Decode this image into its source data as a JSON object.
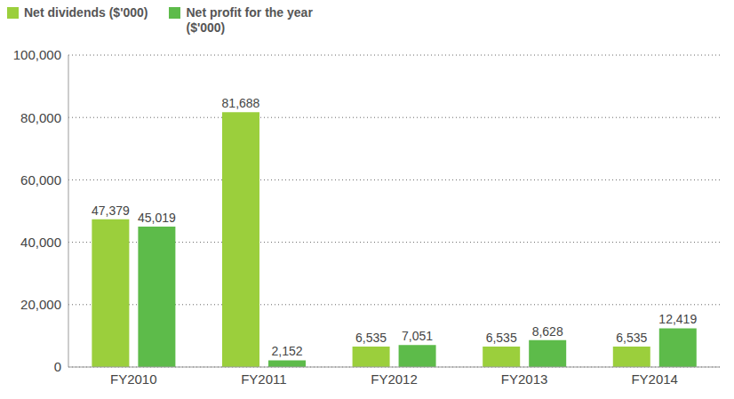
{
  "chart_data": {
    "type": "bar",
    "categories": [
      "FY2010",
      "FY2011",
      "FY2012",
      "FY2013",
      "FY2014"
    ],
    "series": [
      {
        "name": "Net dividends ($'000)",
        "color": "#9bcf3c",
        "values": [
          47379,
          81688,
          6535,
          6535,
          6535
        ],
        "value_labels": [
          "47,379",
          "81,688",
          "6,535",
          "6,535",
          "6,535"
        ]
      },
      {
        "name": "Net profit for the year ($'000)",
        "color": "#5dbb4a",
        "values": [
          45019,
          2152,
          7051,
          8628,
          12419
        ],
        "value_labels": [
          "45,019",
          "2,152",
          "7,051",
          "8,628",
          "12,419"
        ]
      }
    ],
    "ylim": [
      0,
      100000
    ],
    "yticks": [
      0,
      {
        "value": 20000,
        "label": "20,000"
      },
      {
        "value": 40000,
        "label": "40,000"
      },
      {
        "value": 60000,
        "label": "60,000"
      },
      {
        "value": 80000,
        "label": "80,000"
      },
      {
        "value": 100000,
        "label": "100,000"
      }
    ],
    "grid": true,
    "legend": "top-left",
    "data_labels": true
  }
}
